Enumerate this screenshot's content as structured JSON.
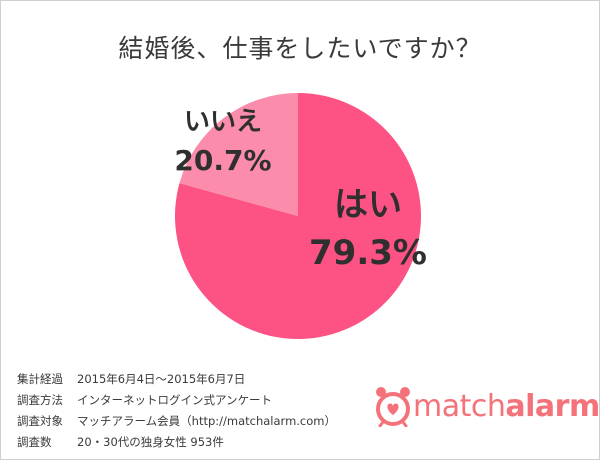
{
  "title": "結婚後、仕事をしたいですか？",
  "chart_data": {
    "type": "pie",
    "title": "結婚後、仕事をしたいですか？",
    "slices": [
      {
        "label": "はい",
        "value": 79.3,
        "display": "79.3%",
        "color": "#fd5284"
      },
      {
        "label": "いいえ",
        "value": 20.7,
        "display": "20.7%",
        "color": "#fc8cab"
      }
    ],
    "start": "12 o'clock, clockwise",
    "legend": "none",
    "labels": "on slices"
  },
  "survey": [
    {
      "key": "集計経過",
      "value": "2015年6月4日〜2015年6月7日"
    },
    {
      "key": "調査方法",
      "value": "インターネットログイン式アンケート"
    },
    {
      "key": "調査対象",
      "value": "マッチアラーム会員（http://matchalarm.com）"
    },
    {
      "key": "調査数",
      "value": "20・30代の独身女性 953件"
    }
  ],
  "brand": {
    "name_part1": "match",
    "name_part2": "alarm",
    "logo_icon": "alarm-clock-heart-icon",
    "color": "#f4727a"
  }
}
